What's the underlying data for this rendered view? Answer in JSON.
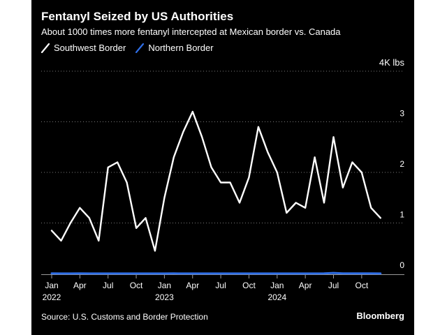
{
  "title": "Fentanyl Seized by US Authorities",
  "subtitle": "About 1000 times more fentanyl intercepted at Mexican border vs. Canada",
  "unit_label": "4K lbs",
  "source": "Source: U.S. Customs and Border Protection",
  "brand": "Bloomberg",
  "colors": {
    "background": "#000000",
    "southwest": "#ffffff",
    "northern": "#2f6ee6",
    "grid": "#7a7a7a",
    "text": "#ffffff"
  },
  "chart_data": {
    "type": "line",
    "title": "Fentanyl Seized by US Authorities",
    "subtitle": "About 1000 times more fentanyl intercepted at Mexican border vs. Canada",
    "ylabel": "",
    "y_unit": "4K lbs",
    "ylim": [
      0,
      4
    ],
    "yticks": [
      "0",
      "1",
      "2",
      "3",
      "4K lbs"
    ],
    "grid": true,
    "legend_position": "top-left",
    "x": [
      "2022-01",
      "2022-02",
      "2022-03",
      "2022-04",
      "2022-05",
      "2022-06",
      "2022-07",
      "2022-08",
      "2022-09",
      "2022-10",
      "2022-11",
      "2022-12",
      "2023-01",
      "2023-02",
      "2023-03",
      "2023-04",
      "2023-05",
      "2023-06",
      "2023-07",
      "2023-08",
      "2023-09",
      "2023-10",
      "2023-11",
      "2023-12",
      "2024-01",
      "2024-02",
      "2024-03",
      "2024-04",
      "2024-05",
      "2024-06",
      "2024-07",
      "2024-08",
      "2024-09",
      "2024-10",
      "2024-11",
      "2024-12"
    ],
    "x_tick_labels": [
      {
        "month": "Jan",
        "year": "2022",
        "index": 0
      },
      {
        "month": "Apr",
        "year": "",
        "index": 3
      },
      {
        "month": "Jul",
        "year": "",
        "index": 6
      },
      {
        "month": "Oct",
        "year": "",
        "index": 9
      },
      {
        "month": "Jan",
        "year": "2023",
        "index": 12
      },
      {
        "month": "Apr",
        "year": "",
        "index": 15
      },
      {
        "month": "Jul",
        "year": "",
        "index": 18
      },
      {
        "month": "Oct",
        "year": "",
        "index": 21
      },
      {
        "month": "Jan",
        "year": "2024",
        "index": 24
      },
      {
        "month": "Apr",
        "year": "",
        "index": 27
      },
      {
        "month": "Jul",
        "year": "",
        "index": 30
      },
      {
        "month": "Oct",
        "year": "",
        "index": 33
      }
    ],
    "series": [
      {
        "name": "Southwest Border",
        "color": "#ffffff",
        "values": [
          0.85,
          0.65,
          1.0,
          1.3,
          1.1,
          0.65,
          2.1,
          2.2,
          1.8,
          0.9,
          1.1,
          0.45,
          1.5,
          2.3,
          2.8,
          3.2,
          2.7,
          2.1,
          1.8,
          1.8,
          1.4,
          1.9,
          2.9,
          2.4,
          2.0,
          1.2,
          1.4,
          1.3,
          2.3,
          1.4,
          2.7,
          1.7,
          2.2,
          2.0,
          1.3,
          1.1
        ]
      },
      {
        "name": "Northern Border",
        "color": "#2f6ee6",
        "values": [
          0.003,
          0.002,
          0.002,
          0.003,
          0.002,
          0.002,
          0.002,
          0.002,
          0.002,
          0.002,
          0.002,
          0.002,
          0.002,
          0.003,
          0.002,
          0.002,
          0.002,
          0.002,
          0.002,
          0.002,
          0.002,
          0.002,
          0.002,
          0.002,
          0.002,
          0.002,
          0.002,
          0.002,
          0.002,
          0.003,
          0.012,
          0.004,
          0.004,
          0.004,
          0.003,
          0.002
        ]
      }
    ]
  }
}
